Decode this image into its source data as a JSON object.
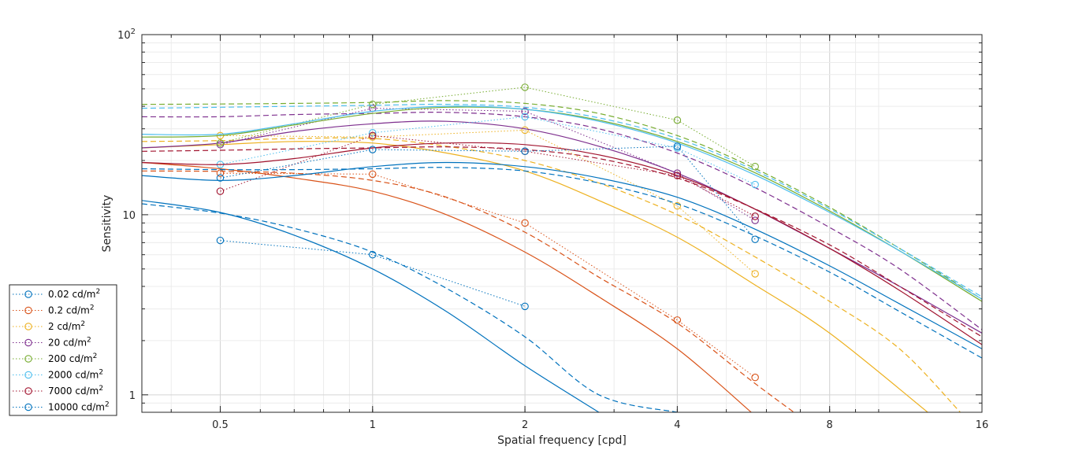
{
  "chart_data": {
    "type": "line",
    "title": "",
    "xlabel": "Spatial frequency [cpd]",
    "ylabel": "Sensitivity",
    "x_scale": "log2",
    "y_scale": "log10",
    "xlim": [
      0.35,
      16
    ],
    "ylim": [
      0.8,
      100
    ],
    "x_ticks": [
      0.5,
      1,
      2,
      4,
      8,
      16
    ],
    "x_tick_labels": [
      "0.5",
      "1",
      "2",
      "4",
      "8",
      "16"
    ],
    "y_tick_labels": [
      {
        "base": "1",
        "exp": ""
      },
      {
        "base": "10",
        "exp": ""
      },
      {
        "base": "10",
        "exp": "2"
      }
    ],
    "grid": true,
    "legend_position": "outside-bottom-left",
    "series": [
      {
        "name": "0.02 cd/m",
        "name_sup": "2",
        "color": "#0072BD",
        "measured_x": [
          0.5,
          1,
          2
        ],
        "measured_y": [
          7.2,
          6.0,
          3.1
        ],
        "solid_x": [
          0.35,
          0.5,
          0.7,
          1,
          1.4,
          2,
          2.8
        ],
        "solid_y": [
          12,
          10.3,
          7.7,
          5.0,
          2.9,
          1.45,
          0.8
        ],
        "dashed_x": [
          0.35,
          0.5,
          0.7,
          1,
          1.4,
          2,
          2.8,
          4
        ],
        "dashed_y": [
          11.5,
          10.2,
          8.4,
          6.2,
          3.9,
          2.1,
          1.0,
          0.8
        ]
      },
      {
        "name": "0.2 cd/m",
        "name_sup": "2",
        "color": "#D95319",
        "measured_x": [
          0.5,
          1,
          2,
          4,
          5.7
        ],
        "measured_y": [
          17.0,
          16.8,
          9.0,
          2.6,
          1.25
        ],
        "solid_x": [
          0.35,
          0.5,
          0.7,
          1,
          1.4,
          2,
          2.8,
          4,
          5.6
        ],
        "solid_y": [
          19.5,
          18.0,
          16.0,
          13.5,
          10.0,
          6.2,
          3.5,
          1.8,
          0.8
        ],
        "dashed_x": [
          0.35,
          0.5,
          0.7,
          1,
          1.4,
          2,
          2.8,
          4,
          5.6,
          6.8
        ],
        "dashed_y": [
          17.5,
          17.4,
          17.0,
          15.5,
          12.5,
          8.0,
          4.5,
          2.5,
          1.2,
          0.8
        ]
      },
      {
        "name": "2 cd/m",
        "name_sup": "2",
        "color": "#EDB120",
        "measured_x": [
          0.5,
          1,
          2,
          4,
          5.7
        ],
        "measured_y": [
          27.5,
          27.0,
          29.5,
          11.2,
          4.7
        ],
        "solid_x": [
          0.35,
          0.5,
          0.7,
          1,
          1.4,
          2,
          2.8,
          4,
          5.6,
          8,
          12.5
        ],
        "solid_y": [
          23.5,
          24.5,
          25.5,
          25.0,
          22.0,
          17.5,
          12.0,
          7.5,
          4.2,
          2.2,
          0.8
        ],
        "dashed_x": [
          0.35,
          0.5,
          0.7,
          1,
          1.4,
          2,
          2.8,
          4,
          5.6,
          8,
          11,
          14.5
        ],
        "dashed_y": [
          25.5,
          25.8,
          26.5,
          26.5,
          24.0,
          20.0,
          15.0,
          10.0,
          6.0,
          3.3,
          1.8,
          0.8
        ]
      },
      {
        "name": "20 cd/m",
        "name_sup": "2",
        "color": "#7E2F8E",
        "measured_x": [
          0.5,
          1,
          2,
          4,
          5.7
        ],
        "measured_y": [
          24.5,
          39.0,
          37.5,
          17.0,
          9.3
        ],
        "solid_x": [
          0.35,
          0.5,
          0.7,
          1,
          1.4,
          2,
          2.8,
          4,
          5.6,
          8,
          11,
          16
        ],
        "solid_y": [
          23.5,
          25.0,
          29.0,
          32.0,
          33.0,
          30.0,
          24.0,
          17.0,
          11.0,
          6.5,
          4.0,
          2.2
        ],
        "dashed_x": [
          0.35,
          0.5,
          0.7,
          1,
          1.4,
          2,
          2.8,
          4,
          5.6,
          8,
          11,
          16
        ],
        "dashed_y": [
          35.0,
          35.0,
          36.0,
          36.5,
          37.0,
          35.0,
          30.0,
          22.0,
          14.5,
          8.5,
          5.0,
          2.3
        ]
      },
      {
        "name": "200 cd/m",
        "name_sup": "2",
        "color": "#77AC30",
        "measured_x": [
          0.5,
          1,
          2,
          4,
          5.7
        ],
        "measured_y": [
          25.0,
          41.0,
          51.0,
          33.5,
          18.5
        ],
        "solid_x": [
          0.35,
          0.5,
          0.7,
          1,
          1.4,
          2,
          2.8,
          4,
          5.6,
          8,
          11,
          16
        ],
        "solid_y": [
          27.0,
          27.5,
          31.5,
          36.5,
          39.5,
          38.5,
          33.5,
          25.5,
          17.5,
          10.5,
          6.3,
          3.3
        ],
        "dashed_x": [
          0.35,
          0.5,
          0.7,
          1,
          1.4,
          2,
          2.8,
          4,
          5.6,
          8,
          11,
          16
        ],
        "dashed_y": [
          41.0,
          41.2,
          41.5,
          42.0,
          43.0,
          41.5,
          36.5,
          27.5,
          18.5,
          11.0,
          6.5,
          3.4
        ]
      },
      {
        "name": "2000 cd/m",
        "name_sup": "2",
        "color": "#4DBEEE",
        "measured_x": [
          0.5,
          1,
          2,
          4,
          5.7
        ],
        "measured_y": [
          19.0,
          28.5,
          35.0,
          23.5,
          14.7
        ],
        "solid_x": [
          0.35,
          0.5,
          0.7,
          1,
          1.4,
          2,
          2.8,
          4,
          5.6,
          8,
          11,
          16
        ],
        "solid_y": [
          28.0,
          28.0,
          32.0,
          37.5,
          40.0,
          38.5,
          33.0,
          25.0,
          17.0,
          10.3,
          6.3,
          3.4
        ],
        "dashed_x": [
          0.35,
          0.5,
          0.7,
          1,
          1.4,
          2,
          2.8,
          4,
          5.6,
          8,
          11,
          16
        ],
        "dashed_y": [
          39.0,
          39.5,
          40.0,
          40.5,
          41.0,
          39.5,
          34.5,
          26.5,
          18.0,
          10.8,
          6.5,
          3.5
        ]
      },
      {
        "name": "7000 cd/m",
        "name_sup": "2",
        "color": "#A2142F",
        "measured_x": [
          0.5,
          1,
          2,
          4,
          5.7
        ],
        "measured_y": [
          13.5,
          27.5,
          22.5,
          16.5,
          9.8
        ],
        "solid_x": [
          0.35,
          0.5,
          0.7,
          1,
          1.4,
          2,
          2.8,
          4,
          5.6,
          8,
          11,
          16
        ],
        "solid_y": [
          19.5,
          19.0,
          20.5,
          23.5,
          25.0,
          24.5,
          21.5,
          16.5,
          11.0,
          6.5,
          3.8,
          1.9
        ],
        "dashed_x": [
          0.35,
          0.5,
          0.7,
          1,
          1.4,
          2,
          2.8,
          4,
          5.6,
          8,
          11,
          16
        ],
        "dashed_y": [
          22.5,
          22.8,
          23.2,
          23.5,
          23.8,
          23.0,
          20.5,
          16.0,
          11.0,
          6.8,
          4.0,
          2.1
        ]
      },
      {
        "name": "10000 cd/m",
        "name_sup": "2",
        "color": "#0072BD",
        "measured_x": [
          0.5,
          1,
          2,
          4,
          5.7
        ],
        "measured_y": [
          16.0,
          23.0,
          22.5,
          24.0,
          7.3
        ],
        "solid_x": [
          0.35,
          0.5,
          0.7,
          1,
          1.4,
          2,
          2.8,
          4,
          5.6,
          8,
          11,
          16
        ],
        "solid_y": [
          16.5,
          15.5,
          16.5,
          18.5,
          19.5,
          18.5,
          16.0,
          12.5,
          8.5,
          5.2,
          3.2,
          1.8
        ],
        "dashed_x": [
          0.35,
          0.5,
          0.7,
          1,
          1.4,
          2,
          2.8,
          4,
          5.6,
          8,
          11,
          16
        ],
        "dashed_y": [
          18.0,
          17.8,
          17.8,
          18.0,
          18.3,
          17.5,
          15.0,
          11.5,
          7.8,
          4.8,
          2.9,
          1.6
        ]
      }
    ]
  }
}
